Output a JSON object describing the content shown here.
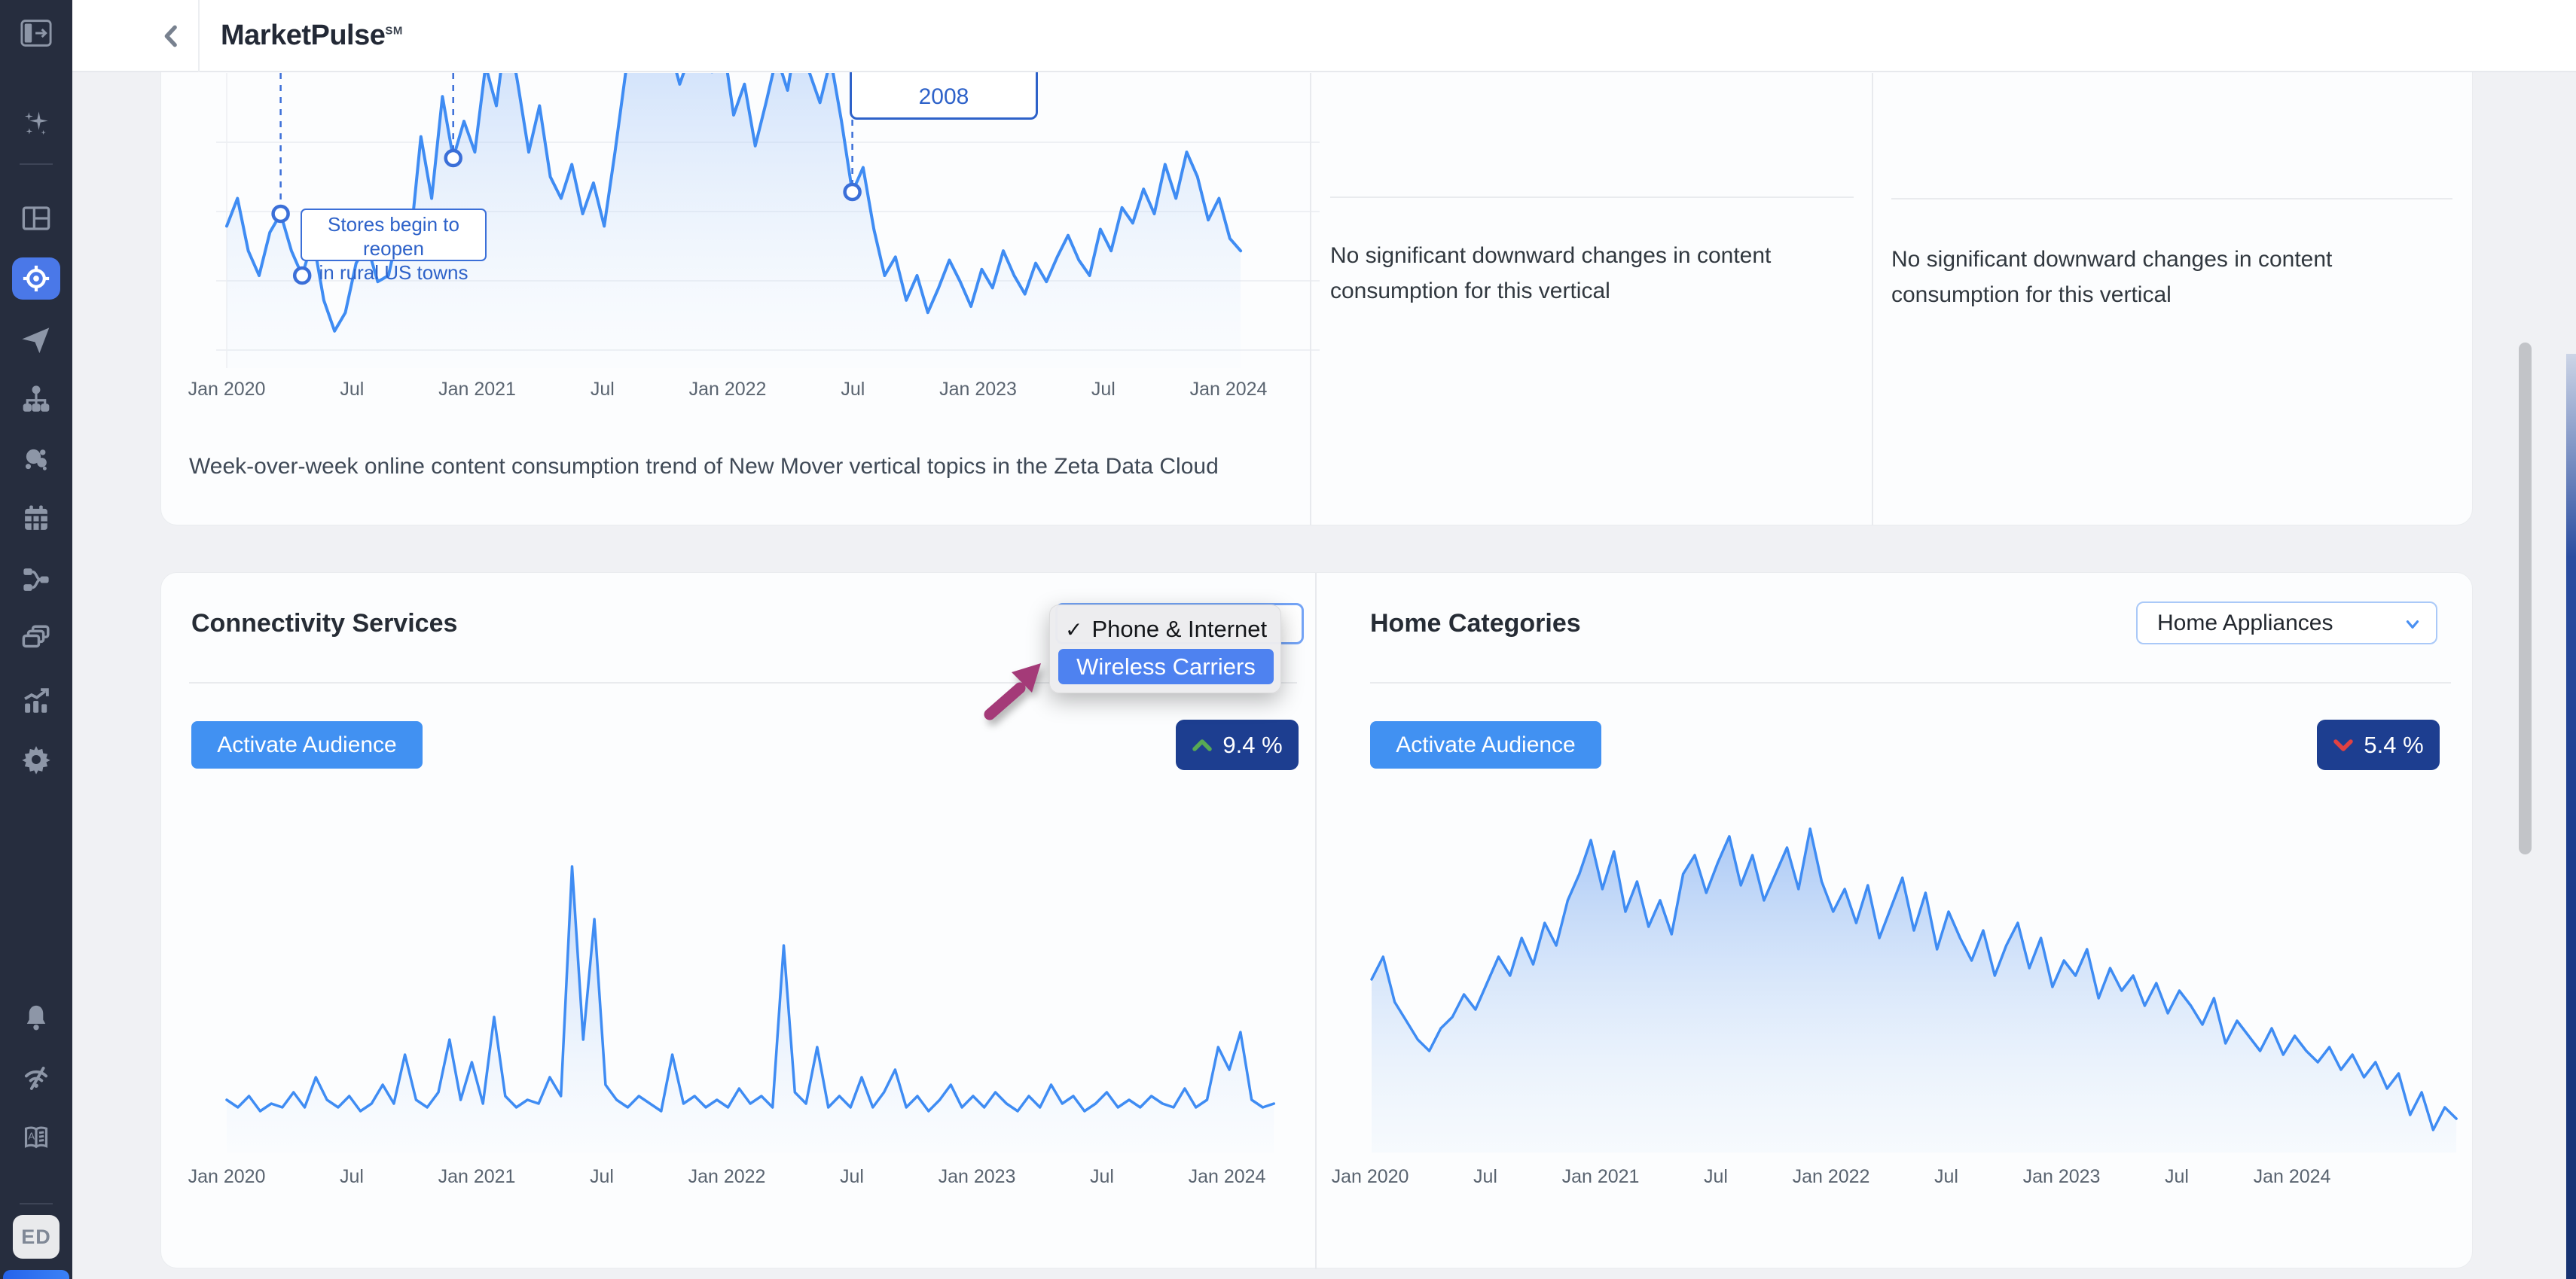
{
  "header": {
    "title": "MarketPulse",
    "title_mark": "SM"
  },
  "sidebar": {
    "items": [
      {
        "name": "sparkles-icon"
      },
      {
        "name": "layout-grid-icon"
      },
      {
        "name": "audience-target-icon",
        "active": true
      },
      {
        "name": "send-icon"
      },
      {
        "name": "hierarchy-icon"
      },
      {
        "name": "bubbles-icon"
      },
      {
        "name": "calendar-icon"
      },
      {
        "name": "workflow-icon"
      },
      {
        "name": "layers-icon"
      },
      {
        "name": "performance-chart-icon"
      },
      {
        "name": "settings-gear-icon"
      },
      {
        "name": "bell-icon"
      },
      {
        "name": "signal-icon"
      },
      {
        "name": "glossary-book-icon"
      }
    ],
    "avatar_initials": "ED"
  },
  "top_section": {
    "annotation": {
      "line1": "Stores begin to reopen",
      "line2": "in rural US towns"
    },
    "year_label": "2008",
    "caption": "Week-over-week online content consumption trend of New Mover vertical topics in the Zeta Data Cloud",
    "panel_middle_text": "No significant downward changes in content consumption for this vertical",
    "panel_right_text": "No significant downward changes in content consumption for this vertical"
  },
  "connectivity": {
    "title": "Connectivity Services",
    "activate_label": "Activate Audience",
    "delta": "9.4 %",
    "delta_direction": "up",
    "dropdown": {
      "check_glyph": "✓",
      "options": [
        {
          "label": "Phone & Internet",
          "checked": true
        },
        {
          "label": "Wireless Carriers",
          "highlighted": true
        }
      ]
    }
  },
  "home": {
    "title": "Home Categories",
    "activate_label": "Activate Audience",
    "delta": "5.4 %",
    "delta_direction": "down",
    "select_value": "Home Appliances"
  },
  "colors": {
    "accent": "#4191f2",
    "sidebar-active": "#4a78e8",
    "badge-navy": "#1d3e90",
    "up-green": "#58a954",
    "down-red": "#e14141",
    "option-highlight": "#4e82f0",
    "chart-line": "#3f8cf3",
    "annotation-blue": "#2e62c9",
    "cursor-magenta": "#a43a78"
  },
  "chart_data": [
    {
      "id": "new_mover_trend",
      "type": "area",
      "title": "Week-over-week online content consumption trend of New Mover vertical topics in the Zeta Data Cloud",
      "x_labels": [
        "Jan 2020",
        "Jul",
        "Jan 2021",
        "Jul",
        "Jan 2022",
        "Jul",
        "Jan 2023",
        "Jul",
        "Jan 2024"
      ],
      "ylim": [
        0,
        140
      ],
      "grid": true,
      "values": [
        46,
        55,
        38,
        30,
        44,
        50,
        38,
        30,
        42,
        22,
        12,
        18,
        34,
        40,
        28,
        30,
        46,
        40,
        75,
        55,
        88,
        68,
        80,
        70,
        98,
        85,
        112,
        92,
        70,
        85,
        62,
        55,
        66,
        50,
        60,
        46,
        70,
        96,
        122,
        108,
        132,
        105,
        92,
        102,
        116,
        96,
        106,
        82,
        92,
        72,
        86,
        101,
        90,
        111,
        96,
        86,
        100,
        80,
        57,
        65,
        45,
        30,
        36,
        22,
        30,
        18,
        26,
        35,
        28,
        20,
        32,
        26,
        38,
        30,
        24,
        34,
        28,
        36,
        43,
        35,
        30,
        45,
        38,
        52,
        47,
        58,
        50,
        66,
        55,
        70,
        62,
        48,
        55,
        42,
        38
      ]
    },
    {
      "id": "connectivity_phone_internet",
      "type": "area",
      "title": "Connectivity Services — Phone & Internet",
      "x_labels": [
        "Jan 2020",
        "Jul",
        "Jan 2021",
        "Jul",
        "Jan 2022",
        "Jul",
        "Jan 2023",
        "Jul",
        "Jan 2024"
      ],
      "ylim": [
        0,
        100
      ],
      "grid": false,
      "values": [
        14,
        12,
        15,
        11,
        13,
        12,
        16,
        12,
        20,
        14,
        12,
        15,
        11,
        13,
        18,
        13,
        26,
        14,
        12,
        16,
        30,
        14,
        24,
        13,
        36,
        15,
        12,
        14,
        13,
        20,
        15,
        76,
        30,
        62,
        18,
        14,
        12,
        15,
        13,
        11,
        26,
        13,
        15,
        12,
        14,
        12,
        17,
        13,
        15,
        12,
        55,
        16,
        13,
        28,
        12,
        15,
        12,
        20,
        12,
        16,
        22,
        12,
        15,
        11,
        14,
        18,
        12,
        15,
        12,
        16,
        13,
        11,
        15,
        12,
        18,
        13,
        15,
        11,
        13,
        16,
        12,
        14,
        12,
        15,
        13,
        12,
        17,
        12,
        14,
        28,
        22,
        32,
        14,
        12,
        13
      ]
    },
    {
      "id": "home_appliances",
      "type": "area",
      "title": "Home Categories — Home Appliances",
      "x_labels": [
        "Jan 2020",
        "Jul",
        "Jan 2021",
        "Jul",
        "Jan 2022",
        "Jul",
        "Jan 2023",
        "Jul",
        "Jan 2024"
      ],
      "ylim": [
        0,
        100
      ],
      "grid": false,
      "values": [
        46,
        52,
        40,
        35,
        30,
        27,
        33,
        36,
        42,
        38,
        45,
        52,
        47,
        57,
        50,
        61,
        55,
        67,
        74,
        83,
        70,
        80,
        64,
        72,
        60,
        67,
        58,
        74,
        79,
        69,
        77,
        84,
        71,
        79,
        67,
        74,
        81,
        70,
        86,
        72,
        64,
        70,
        61,
        71,
        57,
        65,
        73,
        59,
        69,
        54,
        64,
        57,
        51,
        59,
        47,
        55,
        61,
        49,
        57,
        44,
        51,
        47,
        54,
        41,
        49,
        43,
        47,
        39,
        45,
        37,
        43,
        39,
        34,
        41,
        29,
        35,
        31,
        27,
        33,
        26,
        31,
        27,
        24,
        28,
        22,
        26,
        20,
        24,
        17,
        21,
        10,
        16,
        6,
        12,
        9
      ]
    }
  ]
}
